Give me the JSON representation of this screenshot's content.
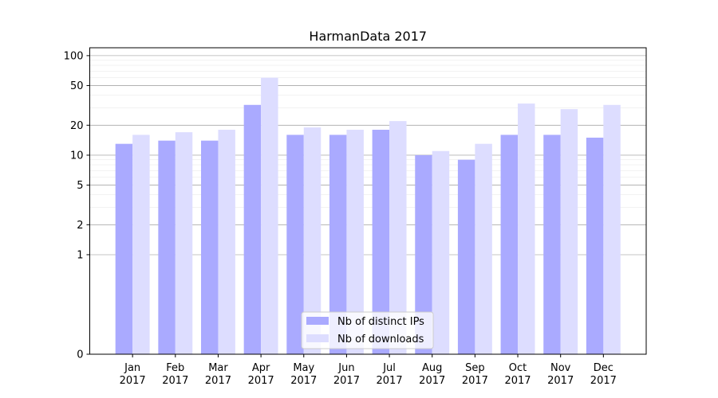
{
  "chart_data": {
    "type": "bar",
    "title": "HarmanData 2017",
    "xlabel": "",
    "ylabel": "",
    "yscale": "symlog",
    "ylim": [
      0,
      120
    ],
    "yticks": [
      0,
      1,
      2,
      5,
      10,
      20,
      50,
      100
    ],
    "ytick_labels": [
      "0",
      "1",
      "2",
      "5",
      "10",
      "20",
      "50",
      "100"
    ],
    "grid": "horizontal",
    "legend_position": "bottom-center",
    "categories": [
      "Jan\n2017",
      "Feb\n2017",
      "Mar\n2017",
      "Apr\n2017",
      "May\n2017",
      "Jun\n2017",
      "Jul\n2017",
      "Aug\n2017",
      "Sep\n2017",
      "Oct\n2017",
      "Nov\n2017",
      "Dec\n2017"
    ],
    "category_lines": [
      [
        "Jan",
        "2017"
      ],
      [
        "Feb",
        "2017"
      ],
      [
        "Mar",
        "2017"
      ],
      [
        "Apr",
        "2017"
      ],
      [
        "May",
        "2017"
      ],
      [
        "Jun",
        "2017"
      ],
      [
        "Jul",
        "2017"
      ],
      [
        "Aug",
        "2017"
      ],
      [
        "Sep",
        "2017"
      ],
      [
        "Oct",
        "2017"
      ],
      [
        "Nov",
        "2017"
      ],
      [
        "Dec",
        "2017"
      ]
    ],
    "series": [
      {
        "name": "Nb of distinct IPs",
        "color": "#aaaaff",
        "values": [
          13,
          14,
          14,
          32,
          16,
          16,
          18,
          10,
          9,
          16,
          16,
          15
        ]
      },
      {
        "name": "Nb of downloads",
        "color": "#ddddff",
        "values": [
          16,
          17,
          18,
          60,
          19,
          18,
          22,
          11,
          13,
          33,
          29,
          32
        ]
      }
    ]
  }
}
